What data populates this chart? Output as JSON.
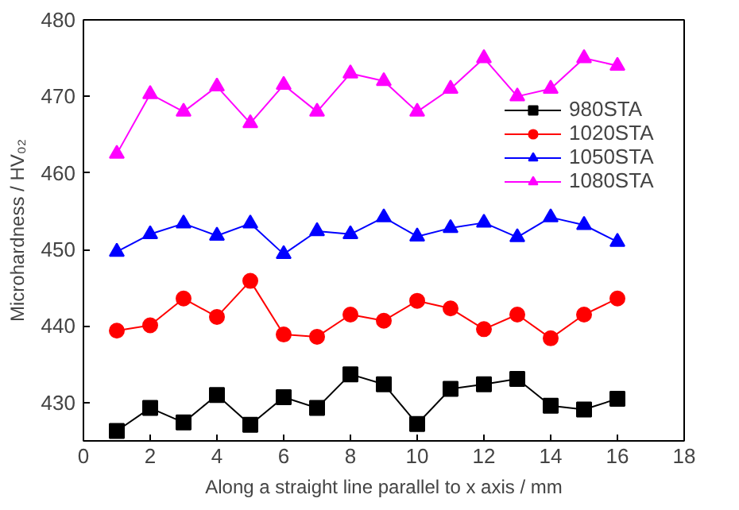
{
  "chart_data": {
    "type": "line",
    "xlabel": "Along a straight line parallel to x axis / mm",
    "ylabel": "Microhardness / HV₀₂",
    "x": [
      1,
      2,
      3,
      4,
      5,
      6,
      7,
      8,
      9,
      10,
      11,
      12,
      13,
      14,
      15,
      16
    ],
    "xlim": [
      0,
      18
    ],
    "xticks": [
      0,
      2,
      4,
      6,
      8,
      10,
      12,
      14,
      16,
      18
    ],
    "ylim": [
      425,
      480
    ],
    "yticks": [
      430,
      440,
      450,
      460,
      470,
      480
    ],
    "grid": false,
    "legend": "right",
    "line_style": "solid",
    "series": [
      {
        "name": "980STA",
        "color": "#000000",
        "marker": "square",
        "values": [
          426.3,
          429.3,
          427.4,
          431,
          427.1,
          430.7,
          429.3,
          433.7,
          432.4,
          427.2,
          431.8,
          432.4,
          433.1,
          429.6,
          429.1,
          430.5
        ]
      },
      {
        "name": "1020STA",
        "color": "#ff0000",
        "marker": "circle",
        "values": [
          439.4,
          440.1,
          443.6,
          441.2,
          445.9,
          438.9,
          438.6,
          441.5,
          440.7,
          443.3,
          442.3,
          439.6,
          441.5,
          438.4,
          441.5,
          443.6
        ]
      },
      {
        "name": "1050STA",
        "color": "#0000ff",
        "marker": "triangle",
        "values": [
          449.7,
          452,
          453.4,
          451.8,
          453.4,
          449.4,
          452.4,
          452,
          454.2,
          451.7,
          452.8,
          453.5,
          451.6,
          454.2,
          453.2,
          451
        ]
      },
      {
        "name": "1080STA",
        "color": "#ff00ff",
        "marker": "triangle",
        "values": [
          462.5,
          470.3,
          468,
          471.3,
          466.5,
          471.5,
          468,
          473,
          472,
          468,
          471,
          475,
          470,
          471,
          475,
          474
        ]
      }
    ]
  }
}
